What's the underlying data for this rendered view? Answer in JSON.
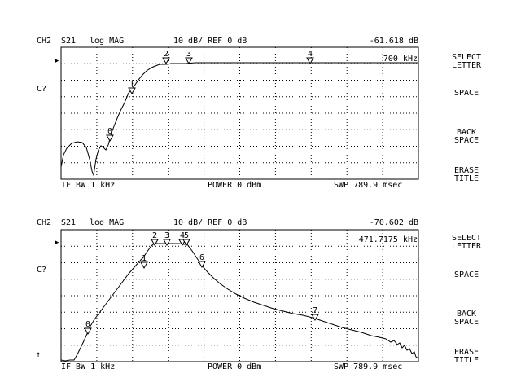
{
  "channels": [
    {
      "header": {
        "channel": "CH2",
        "param": "S21",
        "format": "log MAG",
        "scale": "10 dB/ REF 0 dB",
        "marker_value": "-61.618 dB"
      },
      "marker_freq": "700 kHz",
      "side_label": "C?",
      "footer": {
        "ifbw": "IF BW 1 kHz",
        "power": "POWER  0 dBm",
        "sweep": "SWP  789.9 msec"
      },
      "markers": [
        "0",
        "1",
        "2",
        "3",
        "4"
      ],
      "softkeys": [
        "SELECT\nLETTER",
        "SPACE",
        "BACK\nSPACE",
        "ERASE\nTITLE"
      ]
    },
    {
      "header": {
        "channel": "CH2",
        "param": "S21",
        "format": "log MAG",
        "scale": "10 dB/ REF 0 dB",
        "marker_value": "-70.602 dB"
      },
      "marker_freq": "471.7175 kHz",
      "side_label": "C?",
      "footer": {
        "ifbw": "IF BW 1 kHz",
        "power": "POWER  0 dBm",
        "sweep": "SWP  789.9 msec"
      },
      "markers": [
        "0",
        "1",
        "2",
        "3",
        "4",
        "5",
        "6",
        "7"
      ],
      "softkeys": [
        "SELECT\nLETTER",
        "SPACE",
        "BACK\nSPACE",
        "ERASE\nTITLE"
      ]
    }
  ],
  "colors": {
    "background": "#ffffff",
    "trace": "#000000",
    "grid": "#000000"
  },
  "icons": {
    "ref_pointer": "right-triangle-icon",
    "up_arrow": "up-arrow-icon"
  }
}
